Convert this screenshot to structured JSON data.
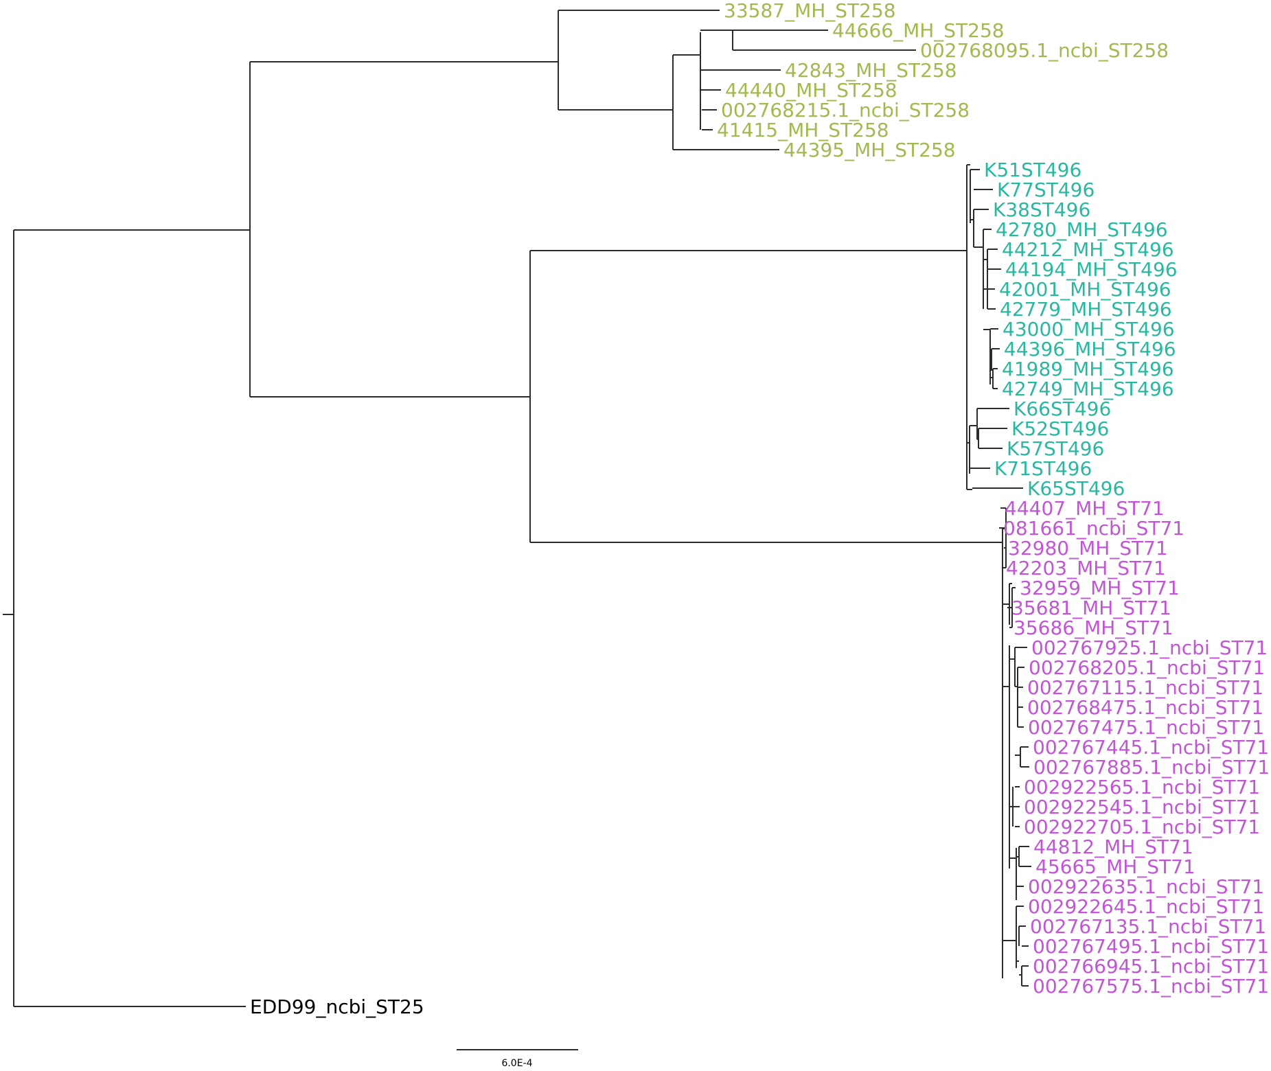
{
  "tree": {
    "colors": {
      "st258": "#a0ba4e",
      "st496": "#28b8a0",
      "st71": "#c254d6",
      "outgroup": "#000000",
      "branch": "#2b2b2b"
    },
    "leaves": [
      {
        "label": "33587_MH_ST258",
        "group": "st258"
      },
      {
        "label": "44666_MH_ST258",
        "group": "st258"
      },
      {
        "label": "002768095.1_ncbi_ST258",
        "group": "st258"
      },
      {
        "label": "42843_MH_ST258",
        "group": "st258"
      },
      {
        "label": "44440_MH_ST258",
        "group": "st258"
      },
      {
        "label": "002768215.1_ncbi_ST258",
        "group": "st258"
      },
      {
        "label": "41415_MH_ST258",
        "group": "st258"
      },
      {
        "label": "44395_MH_ST258",
        "group": "st258"
      },
      {
        "label": "K51ST496",
        "group": "st496"
      },
      {
        "label": "K77ST496",
        "group": "st496"
      },
      {
        "label": "K38ST496",
        "group": "st496"
      },
      {
        "label": "42780_MH_ST496",
        "group": "st496"
      },
      {
        "label": "44212_MH_ST496",
        "group": "st496"
      },
      {
        "label": "44194_MH_ST496",
        "group": "st496"
      },
      {
        "label": "42001_MH_ST496",
        "group": "st496"
      },
      {
        "label": "42779_MH_ST496",
        "group": "st496"
      },
      {
        "label": "43000_MH_ST496",
        "group": "st496"
      },
      {
        "label": "44396_MH_ST496",
        "group": "st496"
      },
      {
        "label": "41989_MH_ST496",
        "group": "st496"
      },
      {
        "label": "42749_MH_ST496",
        "group": "st496"
      },
      {
        "label": "K66ST496",
        "group": "st496"
      },
      {
        "label": "K52ST496",
        "group": "st496"
      },
      {
        "label": "K57ST496",
        "group": "st496"
      },
      {
        "label": "K71ST496",
        "group": "st496"
      },
      {
        "label": "K65ST496",
        "group": "st496"
      },
      {
        "label": "44407_MH_ST71",
        "group": "st71"
      },
      {
        "label": "081661_ncbi_ST71",
        "group": "st71"
      },
      {
        "label": "32980_MH_ST71",
        "group": "st71"
      },
      {
        "label": "42203_MH_ST71",
        "group": "st71"
      },
      {
        "label": "32959_MH_ST71",
        "group": "st71"
      },
      {
        "label": "35681_MH_ST71",
        "group": "st71"
      },
      {
        "label": "35686_MH_ST71",
        "group": "st71"
      },
      {
        "label": "002767925.1_ncbi_ST71",
        "group": "st71"
      },
      {
        "label": "002768205.1_ncbi_ST71",
        "group": "st71"
      },
      {
        "label": "002767115.1_ncbi_ST71",
        "group": "st71"
      },
      {
        "label": "002768475.1_ncbi_ST71",
        "group": "st71"
      },
      {
        "label": "002767475.1_ncbi_ST71",
        "group": "st71"
      },
      {
        "label": "002767445.1_ncbi_ST71",
        "group": "st71"
      },
      {
        "label": "002767885.1_ncbi_ST71",
        "group": "st71"
      },
      {
        "label": "002922565.1_ncbi_ST71",
        "group": "st71"
      },
      {
        "label": "002922545.1_ncbi_ST71",
        "group": "st71"
      },
      {
        "label": "002922705.1_ncbi_ST71",
        "group": "st71"
      },
      {
        "label": "44812_MH_ST71",
        "group": "st71"
      },
      {
        "label": "45665_MH_ST71",
        "group": "st71"
      },
      {
        "label": "002922635.1_ncbi_ST71",
        "group": "st71"
      },
      {
        "label": "002922645.1_ncbi_ST71",
        "group": "st71"
      },
      {
        "label": "002767135.1_ncbi_ST71",
        "group": "st71"
      },
      {
        "label": "002767495.1_ncbi_ST71",
        "group": "st71"
      },
      {
        "label": "002766945.1_ncbi_ST71",
        "group": "st71"
      },
      {
        "label": "002767575.1_ncbi_ST71",
        "group": "st71"
      },
      {
        "label": "EDD99_ncbi_ST25",
        "group": "outgroup"
      }
    ],
    "scale_bar": {
      "label": "6.0E-4",
      "value": 0.0006
    }
  }
}
